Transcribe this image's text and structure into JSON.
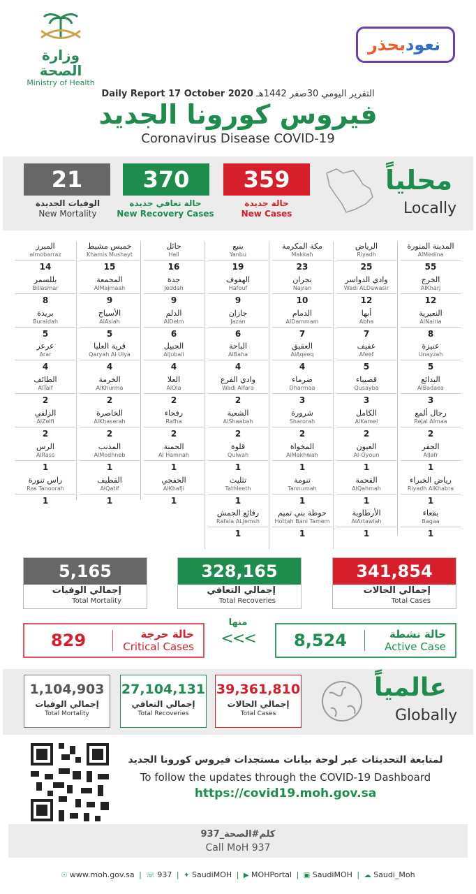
{
  "header": {
    "moh_ar": "وزارة الصحة",
    "moh_en": "Ministry of Health",
    "campaign_part1": "نعود",
    "campaign_part2": "بحذر",
    "report_ar": "التقرير اليومي 30صفر 1442هـ",
    "report_en": "Daily Report 17 October 2020",
    "title_ar": "فيروس كورونا الجديد",
    "title_en": "Coronavirus Disease COVID-19"
  },
  "locally": {
    "label_ar": "محلياً",
    "label_en": "Locally",
    "mortality": {
      "value": "21",
      "ar": "الوفيات الجديدة",
      "en": "New Mortality",
      "color": "#666766"
    },
    "recovery": {
      "value": "370",
      "ar": "حالة تعافي جديدة",
      "en": "New Recovery Cases",
      "color": "#1e8c4d"
    },
    "cases": {
      "value": "359",
      "ar": "حالة جديدة",
      "en": "New Cases",
      "color": "#d71f2b"
    }
  },
  "cities": [
    {
      "ar": "المدينة المنورة",
      "en": "AlMedina",
      "n": "55"
    },
    {
      "ar": "الرياض",
      "en": "Riyadh",
      "n": "25"
    },
    {
      "ar": "مكة المكرمة",
      "en": "Makkah",
      "n": "23"
    },
    {
      "ar": "ينبع",
      "en": "Yanbu",
      "n": "19"
    },
    {
      "ar": "حائل",
      "en": "Hail",
      "n": "16"
    },
    {
      "ar": "خميس مشيط",
      "en": "Khamis Mushayt",
      "n": "15"
    },
    {
      "ar": "المبرز",
      "en": "almobarraz",
      "n": "14"
    },
    {
      "ar": "الخرج",
      "en": "AlKharj",
      "n": "12"
    },
    {
      "ar": "وادي الدواسر",
      "en": "Wadi ALDawasir",
      "n": "12"
    },
    {
      "ar": "نجران",
      "en": "Najran",
      "n": "10"
    },
    {
      "ar": "الهفوف",
      "en": "Hafouf",
      "n": "9"
    },
    {
      "ar": "جدة",
      "en": "Jeddah",
      "n": "9"
    },
    {
      "ar": "المجمعة",
      "en": "AlMajmaah",
      "n": "9"
    },
    {
      "ar": "بللسمر",
      "en": "Billasmar",
      "n": "8"
    },
    {
      "ar": "النعيرية",
      "en": "AlNairia",
      "n": "8"
    },
    {
      "ar": "أبها",
      "en": "Abha",
      "n": "7"
    },
    {
      "ar": "الدمام",
      "en": "AlDammam",
      "n": "7"
    },
    {
      "ar": "جازان",
      "en": "Jazan",
      "n": "6"
    },
    {
      "ar": "الدلم",
      "en": "AlDelm",
      "n": "6"
    },
    {
      "ar": "الأسياح",
      "en": "AlAsiah",
      "n": "5"
    },
    {
      "ar": "بريدة",
      "en": "Buraidah",
      "n": "5"
    },
    {
      "ar": "عنيزة",
      "en": "Unayzah",
      "n": "5"
    },
    {
      "ar": "عفيف",
      "en": "Afeef",
      "n": "5"
    },
    {
      "ar": "العقيق",
      "en": "AlAqeeq",
      "n": "4"
    },
    {
      "ar": "الباحة",
      "en": "AlBaha",
      "n": "4"
    },
    {
      "ar": "الجبيل",
      "en": "AlJubail",
      "n": "4"
    },
    {
      "ar": "قرية العليا",
      "en": "Qaryah Al Ulya",
      "n": "4"
    },
    {
      "ar": "عرعر",
      "en": "Arar",
      "n": "4"
    },
    {
      "ar": "البدائع",
      "en": "AlBadaea",
      "n": "3"
    },
    {
      "ar": "قصيباء",
      "en": "Qusayba",
      "n": "3"
    },
    {
      "ar": "ضرماء",
      "en": "Dharmaa",
      "n": "3"
    },
    {
      "ar": "وادي الفرع",
      "en": "Wadi Alfara",
      "n": "2"
    },
    {
      "ar": "العلا",
      "en": "AlOla",
      "n": "2"
    },
    {
      "ar": "الخرمة",
      "en": "AlKhurma",
      "n": "2"
    },
    {
      "ar": "الطائف",
      "en": "AlTaif",
      "n": "2"
    },
    {
      "ar": "رجال ألمع",
      "en": "Rejal Almaa",
      "n": "2"
    },
    {
      "ar": "الكامل",
      "en": "AlKamel",
      "n": "2"
    },
    {
      "ar": "شرورة",
      "en": "Sharorah",
      "n": "2"
    },
    {
      "ar": "الشعبة",
      "en": "AlShaabah",
      "n": "2"
    },
    {
      "ar": "رفحاء",
      "en": "Rafha",
      "n": "2"
    },
    {
      "ar": "الخاصرة",
      "en": "AlKhaserah",
      "n": "2"
    },
    {
      "ar": "الزلفي",
      "en": "AlZelfi",
      "n": "2"
    },
    {
      "ar": "الجفر",
      "en": "AlJafr",
      "n": "1"
    },
    {
      "ar": "العيون",
      "en": "Al-Oyoun",
      "n": "1"
    },
    {
      "ar": "المخواة",
      "en": "AlMakhwah",
      "n": "1"
    },
    {
      "ar": "قلوة",
      "en": "Qulwah",
      "n": "1"
    },
    {
      "ar": "الحمنة",
      "en": "Al Hamnah",
      "n": "1"
    },
    {
      "ar": "المذنب",
      "en": "AlModhneb",
      "n": "1"
    },
    {
      "ar": "الرس",
      "en": "AlRass",
      "n": "1"
    },
    {
      "ar": "رياض الخبراء",
      "en": "Riyadh AlKhabra",
      "n": "1"
    },
    {
      "ar": "القحمة",
      "en": "AlQahmah",
      "n": "1"
    },
    {
      "ar": "تنومة",
      "en": "Tannumah",
      "n": "1"
    },
    {
      "ar": "تثليث",
      "en": "Tathleeth",
      "n": "1"
    },
    {
      "ar": "الخفجي",
      "en": "AlKhafji",
      "n": "1"
    },
    {
      "ar": "القطيف",
      "en": "AlQatif",
      "n": "1"
    },
    {
      "ar": "راس تنورة",
      "en": "Ras Tanoorah",
      "n": "1"
    },
    {
      "ar": "بقعاء",
      "en": "Bagaa",
      "n": "1"
    },
    {
      "ar": "الأرطاوية",
      "en": "AlArtawiah",
      "n": "1"
    },
    {
      "ar": "حوطة بني تميم",
      "en": "Hottah Bani Tamem",
      "n": "1"
    },
    {
      "ar": "رفائع الجمش",
      "en": "Rafala ALJemsh",
      "n": "1"
    }
  ],
  "totals": {
    "mortality": {
      "value": "5,165",
      "ar": "إجمالي الوفيات",
      "en": "Total Mortality",
      "color": "#666766"
    },
    "recoveries": {
      "value": "328,165",
      "ar": "إجمالي التعافي",
      "en": "Total Recoveries",
      "color": "#1e8c4d"
    },
    "cases": {
      "value": "341,854",
      "ar": "إجمالي الحالات",
      "en": "Total Cases",
      "color": "#d71f2b"
    }
  },
  "sub": {
    "minha": "منها",
    "arrows": "<<<",
    "critical": {
      "value": "829",
      "ar": "حالة حرجة",
      "en": "Critical Cases"
    },
    "active": {
      "value": "8,524",
      "ar": "حالة نشطة",
      "en": "Active Case"
    }
  },
  "globally": {
    "label_ar": "عالمياً",
    "label_en": "Globally",
    "mortality": {
      "value": "1,104,903",
      "ar": "إجمالي الوفيات",
      "en": "Total Mortality"
    },
    "recoveries": {
      "value": "27,104,131",
      "ar": "إجمالي التعافي",
      "en": "Total Recoveries"
    },
    "cases": {
      "value": "39,361,810",
      "ar": "إجمالي الحالات",
      "en": "Total Cases"
    }
  },
  "dashboard": {
    "ar": "لمتابعة التحديثات عبر لوحة بيانات مستجدات فيروس كورونا الجديد",
    "en": "To follow the updates through the COVID-19 Dashboard",
    "url": "https://covid19.moh.gov.sa"
  },
  "call": {
    "ar": "كلم#الصحة_937",
    "en": "Call MoH 937"
  },
  "footer": {
    "items": [
      "www.moh.gov.sa",
      "937",
      "SaudiMOH",
      "MOHPortal",
      "SaudiMOH",
      "Saudi_Moh"
    ]
  }
}
